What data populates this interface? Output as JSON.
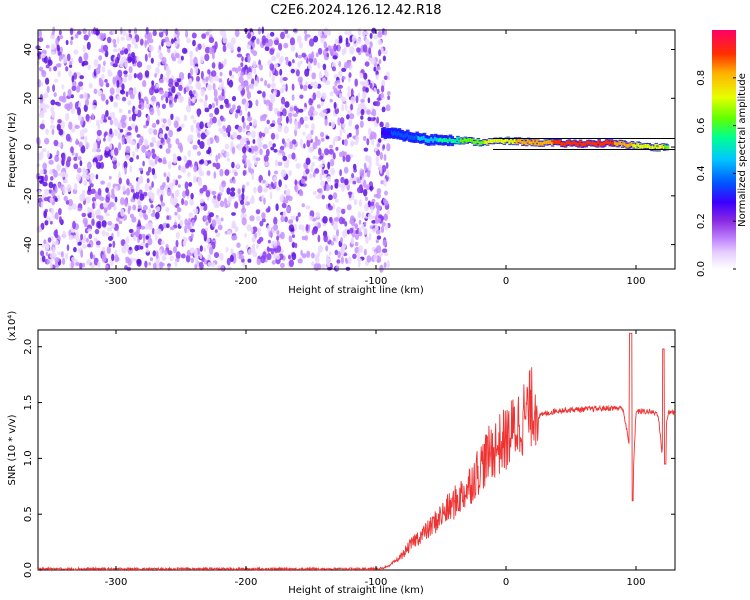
{
  "title": "C2E6.2024.126.12.42.R18",
  "colors": {
    "snr_line": "#ee3333",
    "spectrogram_noise": "#7a2cf0",
    "colormap": [
      "#ffffff",
      "#e6ccff",
      "#c58bff",
      "#8a2be2",
      "#3a00ff",
      "#0055ff",
      "#00c8ff",
      "#00ff90",
      "#60ff00",
      "#e8ff00",
      "#ffb000",
      "#ff3000",
      "#ff0066"
    ]
  },
  "chart_data": [
    {
      "type": "heatmap",
      "xlabel": "Height of straight line (km)",
      "ylabel": "Frequency (Hz)",
      "xlim": [
        -360,
        130
      ],
      "ylim": [
        -50,
        48
      ],
      "xticks": [
        -300,
        -200,
        -100,
        0,
        100
      ],
      "xtick_labels": [
        "-300",
        "-200",
        "-100",
        "0",
        "100"
      ],
      "yticks": [
        40,
        20,
        0,
        -20,
        -40
      ],
      "ytick_labels": [
        "40",
        "20",
        "0",
        "-20",
        "-40"
      ],
      "colorbar": {
        "label": "Normalized spectral amplitude",
        "range": [
          0,
          1
        ],
        "ticks": [
          0.0,
          0.2,
          0.4,
          0.6,
          0.8
        ],
        "tick_labels": [
          "0.0",
          "0.2",
          "0.4",
          "0.6",
          "0.8"
        ]
      },
      "signal_track": [
        {
          "x": -95,
          "f": 6,
          "amp": 0.35
        },
        {
          "x": -80,
          "f": 5,
          "amp": 0.4
        },
        {
          "x": -60,
          "f": 3,
          "amp": 0.5
        },
        {
          "x": -40,
          "f": 3,
          "amp": 0.6
        },
        {
          "x": -20,
          "f": 2,
          "amp": 0.7
        },
        {
          "x": 0,
          "f": 2.5,
          "amp": 0.75
        },
        {
          "x": 20,
          "f": 2,
          "amp": 0.85
        },
        {
          "x": 40,
          "f": 1.5,
          "amp": 0.88
        },
        {
          "x": 60,
          "f": 1.5,
          "amp": 0.9
        },
        {
          "x": 80,
          "f": 1.5,
          "amp": 0.9
        },
        {
          "x": 95,
          "f": 1,
          "amp": 0.8
        },
        {
          "x": 110,
          "f": 0,
          "amp": 0.75
        },
        {
          "x": 125,
          "f": 0,
          "amp": 0.7
        }
      ],
      "noise_extent": {
        "x_from": -360,
        "x_to": -90,
        "f_from": -50,
        "f_to": 48,
        "amp": 0.25
      }
    },
    {
      "type": "line",
      "xlabel": "Height of straight line (km)",
      "ylabel": "SNR (10 * v/v)",
      "y_multiplier": "(x10⁴)",
      "xlim": [
        -360,
        130
      ],
      "ylim": [
        0,
        2.15
      ],
      "xticks": [
        -300,
        -200,
        -100,
        0,
        100
      ],
      "xtick_labels": [
        "-300",
        "-200",
        "-100",
        "0",
        "100"
      ],
      "yticks": [
        0.0,
        0.5,
        1.0,
        1.5,
        2.0
      ],
      "ytick_labels": [
        "0.0",
        "0.5",
        "1.0",
        "1.5",
        "2.0"
      ],
      "series": [
        {
          "x": [
            -360,
            -300,
            -200,
            -120,
            -100,
            -90,
            -80,
            -70,
            -60,
            -50,
            -40,
            -30,
            -20,
            -10,
            0,
            10,
            20,
            30,
            40,
            60,
            80,
            90,
            95,
            97,
            100,
            110,
            117,
            120,
            125,
            130
          ],
          "y": [
            0.01,
            0.01,
            0.01,
            0.01,
            0.01,
            0.03,
            0.12,
            0.25,
            0.33,
            0.45,
            0.55,
            0.67,
            0.85,
            1.0,
            1.08,
            1.22,
            1.35,
            1.4,
            1.43,
            1.44,
            1.45,
            1.45,
            1.1,
            0.65,
            1.42,
            1.42,
            1.4,
            1.05,
            1.42,
            1.41
          ]
        }
      ]
    }
  ]
}
